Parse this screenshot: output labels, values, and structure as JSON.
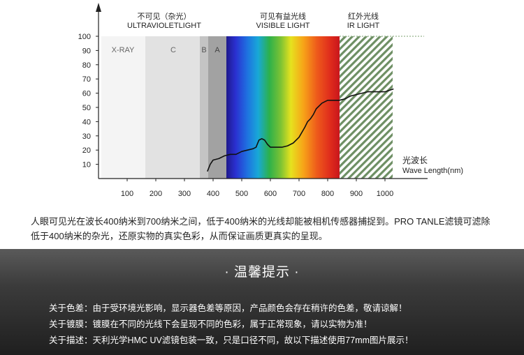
{
  "chart_data": {
    "type": "line",
    "bands": [
      {
        "name": "不可见（杂光）",
        "name_en": "ULTRAVIOLETLIGHT"
      },
      {
        "name": "可见有益光线",
        "name_en": "VISIBLE LIGHT"
      },
      {
        "name": "红外光线",
        "name_en": "IR LIGHT"
      }
    ],
    "uv_regions": [
      "X-RAY",
      "C",
      "B",
      "A"
    ],
    "x_ticks": [
      100,
      200,
      300,
      400,
      500,
      600,
      700,
      800,
      900,
      1000
    ],
    "y_ticks": [
      100,
      90,
      80,
      70,
      60,
      50,
      40,
      30,
      20,
      10
    ],
    "xlim": [
      0,
      1060
    ],
    "ylim": [
      0,
      100
    ],
    "xlabel": "光波长",
    "xlabel_en": "Wave Length(nm)",
    "series": [
      {
        "values": [
          [
            380,
            5
          ],
          [
            390,
            10
          ],
          [
            400,
            13
          ],
          [
            420,
            14
          ],
          [
            440,
            16
          ],
          [
            460,
            17
          ],
          [
            480,
            17
          ],
          [
            500,
            19
          ],
          [
            520,
            20
          ],
          [
            540,
            21
          ],
          [
            550,
            22
          ],
          [
            560,
            27
          ],
          [
            570,
            28
          ],
          [
            580,
            27
          ],
          [
            590,
            24
          ],
          [
            600,
            22
          ],
          [
            620,
            22
          ],
          [
            640,
            22
          ],
          [
            660,
            23
          ],
          [
            680,
            25
          ],
          [
            700,
            29
          ],
          [
            720,
            36
          ],
          [
            730,
            40
          ],
          [
            740,
            42
          ],
          [
            750,
            45
          ],
          [
            760,
            49
          ],
          [
            780,
            53
          ],
          [
            790,
            54
          ],
          [
            800,
            55
          ],
          [
            820,
            55
          ],
          [
            840,
            55
          ],
          [
            860,
            56
          ],
          [
            880,
            58
          ],
          [
            900,
            59
          ],
          [
            920,
            60
          ],
          [
            940,
            61
          ],
          [
            960,
            61
          ],
          [
            980,
            61
          ],
          [
            1000,
            61
          ],
          [
            1030,
            63
          ]
        ]
      }
    ],
    "colors": {
      "line": "#111111",
      "ir_hatch": "#6e8f64",
      "dotted": "#93b28a"
    }
  },
  "description": "人眼可见光在波长400纳米到700纳米之间，低于400纳米的光线却能被相机传感器捕捉到。PRO TANLE滤镜可滤除低于400纳米的杂光，还原实物的真实色彩，从而保证画质更真实的呈现。",
  "tips": {
    "title": "· 温馨提示 ·",
    "lines": [
      "关于色差：由于受环境光影响，显示器色差等原因，产品颜色会存在稍许的色差，敬请谅解！",
      "关于镀膜：镀膜在不同的光线下会呈现不同的色彩，属于正常现象，请以实物为准！",
      "关于描述：天利光学HMC UV滤镜包装一致，只是口径不同，故以下描述使用77mm图片展示！"
    ]
  }
}
